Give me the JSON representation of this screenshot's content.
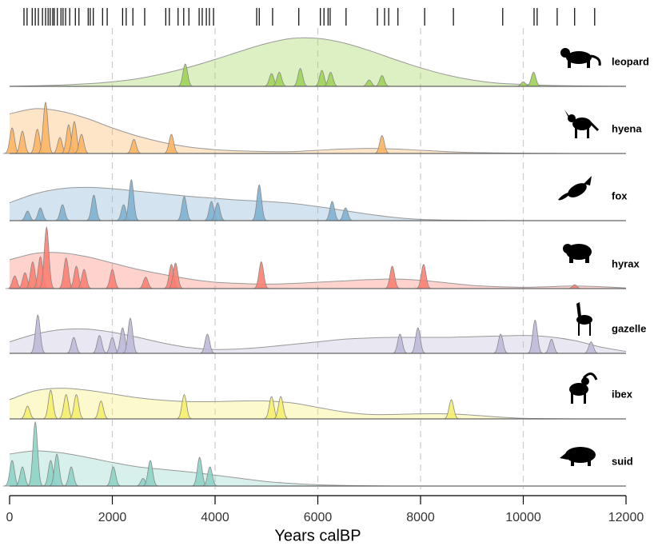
{
  "chart_data": {
    "type": "ridgeline",
    "xlabel": "Years calBP",
    "xlim": [
      0,
      12000
    ],
    "xticks": [
      0,
      2000,
      4000,
      6000,
      8000,
      10000,
      12000
    ],
    "grid": true,
    "rug": [
      280,
      340,
      440,
      500,
      560,
      640,
      700,
      750,
      790,
      840,
      870,
      930,
      1000,
      1040,
      1090,
      1170,
      1280,
      1350,
      1530,
      1570,
      1630,
      1810,
      1900,
      2200,
      2270,
      2400,
      2630,
      3040,
      3110,
      3280,
      3390,
      3490,
      3690,
      3750,
      3830,
      3890,
      3970,
      4810,
      4860,
      5120,
      5630,
      6050,
      6120,
      6200,
      6240,
      6550,
      7160,
      7300,
      7380,
      7560,
      8080,
      8640,
      9600,
      10210,
      10270,
      10660,
      11000,
      11390
    ],
    "x": [
      0,
      500,
      1000,
      1500,
      2000,
      2500,
      3000,
      3500,
      4000,
      4500,
      5000,
      5500,
      6000,
      6500,
      7000,
      7500,
      8000,
      8500,
      9000,
      9500,
      10000,
      10500,
      11000,
      11500,
      12000
    ],
    "series": [
      {
        "name": "leopard",
        "color": "#9fd356",
        "density": [
          0,
          0.01,
          0.02,
          0.04,
          0.07,
          0.12,
          0.2,
          0.3,
          0.42,
          0.55,
          0.67,
          0.75,
          0.75,
          0.68,
          0.56,
          0.42,
          0.29,
          0.18,
          0.1,
          0.05,
          0.03,
          0.015,
          0.008,
          0.004,
          0.002
        ],
        "peak_dates": [
          3420,
          5100,
          5250,
          5660,
          6080,
          6250,
          7000,
          7250,
          10000,
          10200
        ],
        "peak_heights": [
          0.35,
          0.2,
          0.22,
          0.28,
          0.25,
          0.22,
          0.1,
          0.17,
          0.07,
          0.22
        ]
      },
      {
        "name": "hyena",
        "color": "#fdb462",
        "density": [
          0.62,
          0.7,
          0.66,
          0.55,
          0.4,
          0.27,
          0.17,
          0.1,
          0.06,
          0.04,
          0.03,
          0.03,
          0.05,
          0.07,
          0.08,
          0.07,
          0.05,
          0.03,
          0.015,
          0.01,
          0.005,
          0.003,
          0,
          0,
          0
        ],
        "peak_dates": [
          50,
          250,
          540,
          700,
          980,
          1150,
          1260,
          1400,
          2420,
          3150,
          7250
        ],
        "peak_heights": [
          0.4,
          0.35,
          0.38,
          0.8,
          0.25,
          0.45,
          0.5,
          0.3,
          0.22,
          0.3,
          0.28
        ]
      },
      {
        "name": "fox",
        "color": "#80b1d3",
        "density": [
          0.28,
          0.42,
          0.5,
          0.52,
          0.5,
          0.46,
          0.42,
          0.38,
          0.35,
          0.32,
          0.3,
          0.27,
          0.22,
          0.16,
          0.1,
          0.05,
          0.02,
          0.01,
          0.005,
          0.003,
          0,
          0,
          0,
          0,
          0
        ],
        "peak_dates": [
          350,
          600,
          1030,
          1640,
          2220,
          2370,
          3400,
          3930,
          4050,
          4860,
          6280,
          6540
        ],
        "peak_heights": [
          0.15,
          0.2,
          0.25,
          0.4,
          0.25,
          0.64,
          0.38,
          0.3,
          0.28,
          0.56,
          0.3,
          0.2
        ]
      },
      {
        "name": "hyrax",
        "color": "#fb8072",
        "density": [
          0.45,
          0.55,
          0.56,
          0.5,
          0.4,
          0.3,
          0.22,
          0.15,
          0.1,
          0.08,
          0.07,
          0.08,
          0.1,
          0.12,
          0.14,
          0.15,
          0.13,
          0.09,
          0.05,
          0.03,
          0.02,
          0.03,
          0.04,
          0.03,
          0.01
        ],
        "peak_dates": [
          100,
          300,
          450,
          600,
          720,
          1100,
          1300,
          1450,
          2000,
          2650,
          3150,
          3230,
          4900,
          7450,
          8060,
          11000
        ],
        "peak_heights": [
          0.2,
          0.25,
          0.42,
          0.5,
          0.96,
          0.48,
          0.35,
          0.3,
          0.3,
          0.18,
          0.38,
          0.4,
          0.42,
          0.35,
          0.38,
          0.06
        ]
      },
      {
        "name": "gazelle",
        "color": "#bebada",
        "density": [
          0.18,
          0.3,
          0.37,
          0.38,
          0.33,
          0.25,
          0.16,
          0.09,
          0.06,
          0.07,
          0.1,
          0.14,
          0.18,
          0.22,
          0.24,
          0.25,
          0.25,
          0.25,
          0.26,
          0.27,
          0.28,
          0.26,
          0.2,
          0.1,
          0.03
        ],
        "peak_dates": [
          550,
          1250,
          1750,
          2000,
          2200,
          2350,
          3850,
          7600,
          7950,
          9560,
          10230,
          10550,
          11320
        ],
        "peak_heights": [
          0.6,
          0.25,
          0.28,
          0.25,
          0.4,
          0.55,
          0.3,
          0.3,
          0.4,
          0.3,
          0.52,
          0.22,
          0.18
        ]
      },
      {
        "name": "ibex",
        "color": "#f5ee6e",
        "density": [
          0.3,
          0.44,
          0.48,
          0.45,
          0.39,
          0.33,
          0.29,
          0.27,
          0.27,
          0.28,
          0.28,
          0.25,
          0.18,
          0.11,
          0.07,
          0.07,
          0.08,
          0.08,
          0.06,
          0.03,
          0.01,
          0.005,
          0,
          0,
          0
        ],
        "peak_dates": [
          350,
          800,
          1100,
          1300,
          1780,
          3400,
          5100,
          5280,
          8600
        ],
        "peak_heights": [
          0.2,
          0.45,
          0.38,
          0.38,
          0.28,
          0.38,
          0.35,
          0.35,
          0.3
        ]
      },
      {
        "name": "suid",
        "color": "#8dd3c7",
        "density": [
          0.5,
          0.55,
          0.52,
          0.45,
          0.37,
          0.3,
          0.26,
          0.22,
          0.17,
          0.12,
          0.07,
          0.04,
          0.02,
          0.01,
          0.005,
          0,
          0,
          0,
          0,
          0,
          0,
          0,
          0,
          0,
          0
        ],
        "peak_dates": [
          50,
          250,
          500,
          800,
          920,
          1200,
          2020,
          2600,
          2740,
          3700,
          3900
        ],
        "peak_heights": [
          0.4,
          0.3,
          1.0,
          0.4,
          0.5,
          0.3,
          0.3,
          0.12,
          0.4,
          0.45,
          0.3
        ]
      }
    ]
  }
}
